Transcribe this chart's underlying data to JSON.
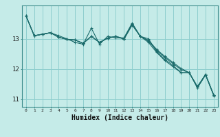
{
  "xlabel": "Humidex (Indice chaleur)",
  "background_color": "#c5ebe8",
  "grid_color": "#8ecece",
  "line_color": "#1a6b6b",
  "x": [
    0,
    1,
    2,
    3,
    4,
    5,
    6,
    7,
    8,
    9,
    10,
    11,
    12,
    13,
    14,
    15,
    16,
    17,
    18,
    19,
    20,
    21,
    22,
    23
  ],
  "line1": [
    13.75,
    13.1,
    13.15,
    13.2,
    13.1,
    13.0,
    12.88,
    12.82,
    13.35,
    12.82,
    13.08,
    13.03,
    13.03,
    13.52,
    13.08,
    13.0,
    12.58,
    12.32,
    12.12,
    11.88,
    11.88,
    11.38,
    11.8,
    11.12
  ],
  "line2": [
    13.75,
    13.1,
    13.15,
    13.2,
    13.05,
    12.98,
    12.96,
    12.85,
    13.08,
    12.88,
    13.02,
    13.08,
    12.98,
    13.45,
    13.08,
    12.92,
    12.62,
    12.38,
    12.18,
    11.98,
    11.88,
    11.42,
    11.82,
    11.14
  ],
  "line3": [
    13.75,
    13.1,
    13.15,
    13.2,
    13.05,
    12.98,
    12.96,
    12.85,
    13.08,
    12.88,
    13.02,
    13.08,
    13.0,
    13.48,
    13.08,
    12.88,
    12.55,
    12.28,
    12.08,
    11.88,
    11.88,
    11.38,
    11.82,
    11.14
  ],
  "line4": [
    13.75,
    13.1,
    13.15,
    13.2,
    13.05,
    12.98,
    12.96,
    12.85,
    13.08,
    12.88,
    13.02,
    13.08,
    13.0,
    13.5,
    13.08,
    12.95,
    12.65,
    12.42,
    12.22,
    12.02,
    11.88,
    11.42,
    11.82,
    11.14
  ],
  "ylim": [
    10.75,
    14.1
  ],
  "ytick_locs": [
    11,
    12,
    13
  ],
  "ytick_labels": [
    "11",
    "12",
    "13"
  ],
  "xlim": [
    -0.5,
    23.5
  ]
}
